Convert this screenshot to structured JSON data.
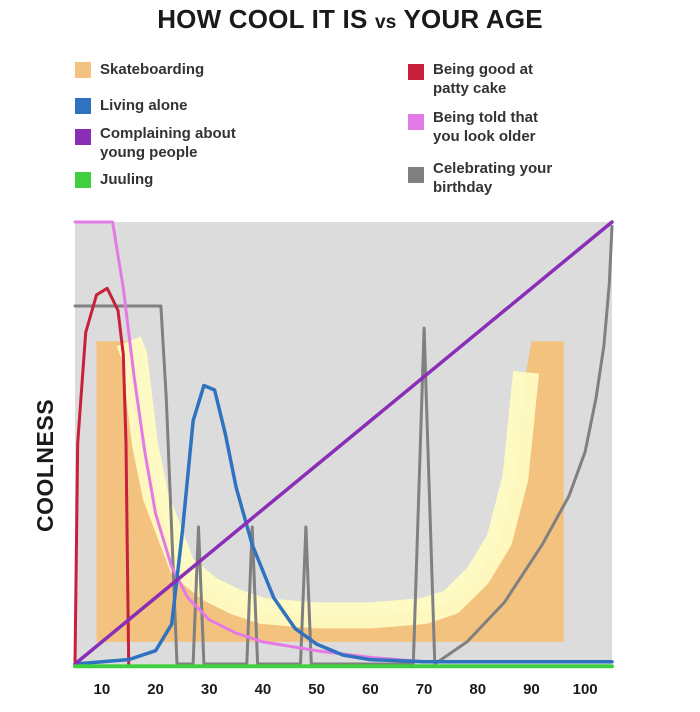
{
  "chart_data": {
    "type": "area",
    "title": "HOW COOL IT IS vs YOUR AGE",
    "title_parts": {
      "main1": "HOW COOL IT IS",
      "vs": "vs",
      "main2": "YOUR AGE"
    },
    "ylabel": "COOLNESS",
    "xlabel": "",
    "xlim": [
      5,
      105
    ],
    "ylim": [
      0,
      100
    ],
    "grid": false,
    "legend_position": "top",
    "x_ticks": [
      10,
      20,
      30,
      40,
      50,
      60,
      70,
      80,
      90,
      100
    ],
    "series": [
      {
        "name": "Skateboarding",
        "key": "skate",
        "color": "#f3c27e",
        "shape": "u-area",
        "points": [
          [
            9,
            73
          ],
          [
            12,
            73
          ],
          [
            15,
            73
          ],
          [
            16,
            70
          ],
          [
            18,
            50
          ],
          [
            20,
            38
          ],
          [
            25,
            22
          ],
          [
            30,
            17
          ],
          [
            35,
            14
          ],
          [
            40,
            12
          ],
          [
            50,
            11
          ],
          [
            60,
            11
          ],
          [
            70,
            12
          ],
          [
            75,
            14
          ],
          [
            80,
            20
          ],
          [
            84,
            28
          ],
          [
            87,
            42
          ],
          [
            89,
            66
          ],
          [
            90,
            73
          ],
          [
            96,
            73
          ],
          [
            96,
            5
          ],
          [
            9,
            5
          ]
        ]
      },
      {
        "name": "Being good at patty cake",
        "key": "patty",
        "color": "#c8203a",
        "points": [
          [
            5,
            0
          ],
          [
            5.5,
            50
          ],
          [
            7,
            75
          ],
          [
            9,
            83.5
          ],
          [
            11,
            85
          ],
          [
            13,
            80
          ],
          [
            14,
            70
          ],
          [
            14.5,
            50
          ],
          [
            14.8,
            20
          ],
          [
            15,
            0
          ]
        ]
      },
      {
        "name": "Living alone",
        "key": "living",
        "color": "#2f73c0",
        "points": [
          [
            5,
            0
          ],
          [
            15,
            1
          ],
          [
            20,
            3
          ],
          [
            23,
            9
          ],
          [
            25,
            30
          ],
          [
            27,
            55
          ],
          [
            29,
            63
          ],
          [
            31,
            62
          ],
          [
            33,
            52
          ],
          [
            35,
            40
          ],
          [
            38,
            27
          ],
          [
            42,
            15
          ],
          [
            46,
            8
          ],
          [
            50,
            4.5
          ],
          [
            55,
            2
          ],
          [
            60,
            1
          ],
          [
            70,
            0.5
          ],
          [
            105,
            0.5
          ]
        ]
      },
      {
        "name": "Being told that you look older",
        "key": "older",
        "color": "#e37ae6",
        "points": [
          [
            5,
            100
          ],
          [
            12,
            100
          ],
          [
            14,
            85
          ],
          [
            16,
            65
          ],
          [
            18,
            48
          ],
          [
            20,
            34
          ],
          [
            23,
            22
          ],
          [
            26,
            15
          ],
          [
            30,
            10
          ],
          [
            35,
            7
          ],
          [
            40,
            5
          ],
          [
            50,
            3
          ],
          [
            60,
            1.5
          ],
          [
            70,
            0.5
          ],
          [
            105,
            0.5
          ]
        ]
      },
      {
        "name": "Complaining about young people",
        "key": "complain",
        "color": "#8a2eb8",
        "points": [
          [
            5,
            0
          ],
          [
            105,
            100
          ]
        ]
      },
      {
        "name": "Celebrating your birthday",
        "key": "birthday",
        "color": "#808080",
        "points": [
          [
            5,
            81
          ],
          [
            21,
            81
          ],
          [
            22,
            60
          ],
          [
            23,
            30
          ],
          [
            24,
            0
          ],
          [
            27,
            0
          ],
          [
            28,
            31
          ],
          [
            29,
            0
          ],
          [
            37,
            0
          ],
          [
            38,
            31
          ],
          [
            39,
            0
          ],
          [
            47,
            0
          ],
          [
            48,
            31
          ],
          [
            49,
            0
          ],
          [
            68,
            0
          ],
          [
            70,
            76
          ],
          [
            72,
            0
          ],
          [
            78,
            5
          ],
          [
            85,
            14
          ],
          [
            92,
            27
          ],
          [
            97,
            38
          ],
          [
            100,
            48
          ],
          [
            102,
            60
          ],
          [
            103.5,
            72
          ],
          [
            104.5,
            86
          ],
          [
            105,
            99
          ]
        ]
      },
      {
        "name": "Juuling",
        "key": "juul",
        "color": "#3fcf3f",
        "points": [
          [
            5,
            -0.5
          ],
          [
            105,
            -0.5
          ]
        ]
      }
    ]
  },
  "colors": {
    "plot_background": "#dcdcdc",
    "yellow_band": "#fffbc2"
  },
  "legend": {
    "left": [
      {
        "label_lines": [
          "Skateboarding"
        ],
        "key": "skate"
      },
      {
        "label_lines": [
          "Living alone"
        ],
        "key": "living"
      },
      {
        "label_lines": [
          "Complaining about",
          "young people"
        ],
        "key": "complain"
      },
      {
        "label_lines": [
          "Juuling"
        ],
        "key": "juul"
      }
    ],
    "right": [
      {
        "label_lines": [
          "Being good at",
          "patty cake"
        ],
        "key": "patty"
      },
      {
        "label_lines": [
          "Being told that",
          "you look older"
        ],
        "key": "older"
      },
      {
        "label_lines": [
          "Celebrating your",
          "birthday"
        ],
        "key": "birthday"
      }
    ]
  }
}
